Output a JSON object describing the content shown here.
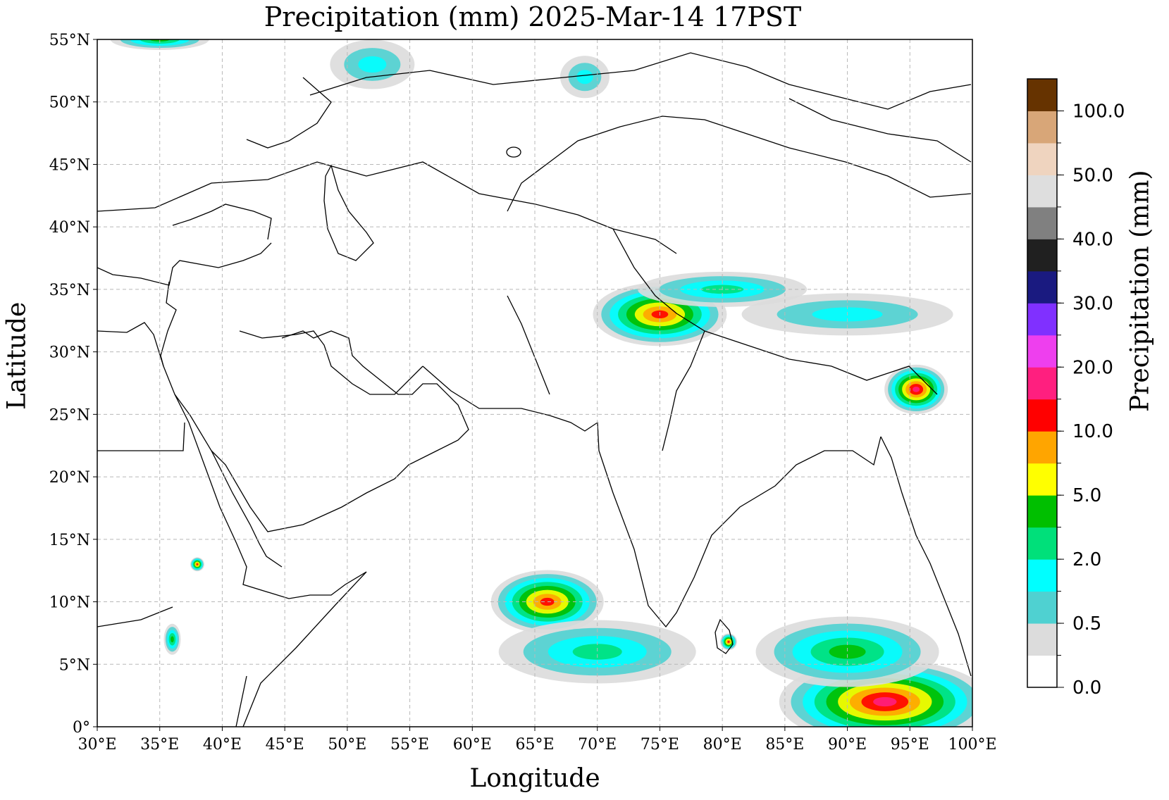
{
  "title": "Precipitation (mm)  2025-Mar-14 17PST",
  "x_axis": {
    "label": "Longitude",
    "ticks": [
      "30°E",
      "35°E",
      "40°E",
      "45°E",
      "50°E",
      "55°E",
      "60°E",
      "65°E",
      "70°E",
      "75°E",
      "80°E",
      "85°E",
      "90°E",
      "95°E",
      "100°E"
    ],
    "range": [
      30,
      100
    ]
  },
  "y_axis": {
    "label": "Latitude",
    "ticks": [
      "0°",
      "5°N",
      "10°N",
      "15°N",
      "20°N",
      "25°N",
      "30°N",
      "35°N",
      "40°N",
      "45°N",
      "50°N",
      "55°N"
    ],
    "range": [
      0,
      55
    ]
  },
  "grid": "dashed",
  "colorbar": {
    "label": "Precipitation (mm)",
    "tick_labels": [
      "0.0",
      "0.5",
      "2.0",
      "5.0",
      "10.0",
      "20.0",
      "30.0",
      "40.0",
      "50.0",
      "100.0"
    ],
    "colors": [
      "#ffffff",
      "#dcdcdc",
      "#4fd1d1",
      "#00ffff",
      "#00e07a",
      "#00bf00",
      "#ffff00",
      "#ffa500",
      "#ff0000",
      "#ff1f7f",
      "#ee3fee",
      "#8030ff",
      "#1a1a80",
      "#202020",
      "#808080",
      "#dedede",
      "#efd4bf",
      "#d8a678",
      "#663300"
    ]
  },
  "chart_data": {
    "type": "map",
    "variable": "Precipitation (mm)",
    "valid_time": "2025-Mar-14 17PST",
    "extent": {
      "lon": [
        30,
        100
      ],
      "lat": [
        0,
        55
      ]
    },
    "precip_regions": [
      {
        "lon": 75,
        "lat": 33,
        "peak": "10.0+"
      },
      {
        "lon": 95.5,
        "lat": 27,
        "peak": "20.0+"
      },
      {
        "lon": 66,
        "lat": 10,
        "peak": "10.0+"
      },
      {
        "lon": 93,
        "lat": 2,
        "peak": "20.0+"
      },
      {
        "lon": 80.5,
        "lat": 6.8,
        "peak": "10.0+"
      },
      {
        "lon": 38,
        "lat": 13,
        "peak": "10.0+"
      }
    ]
  }
}
